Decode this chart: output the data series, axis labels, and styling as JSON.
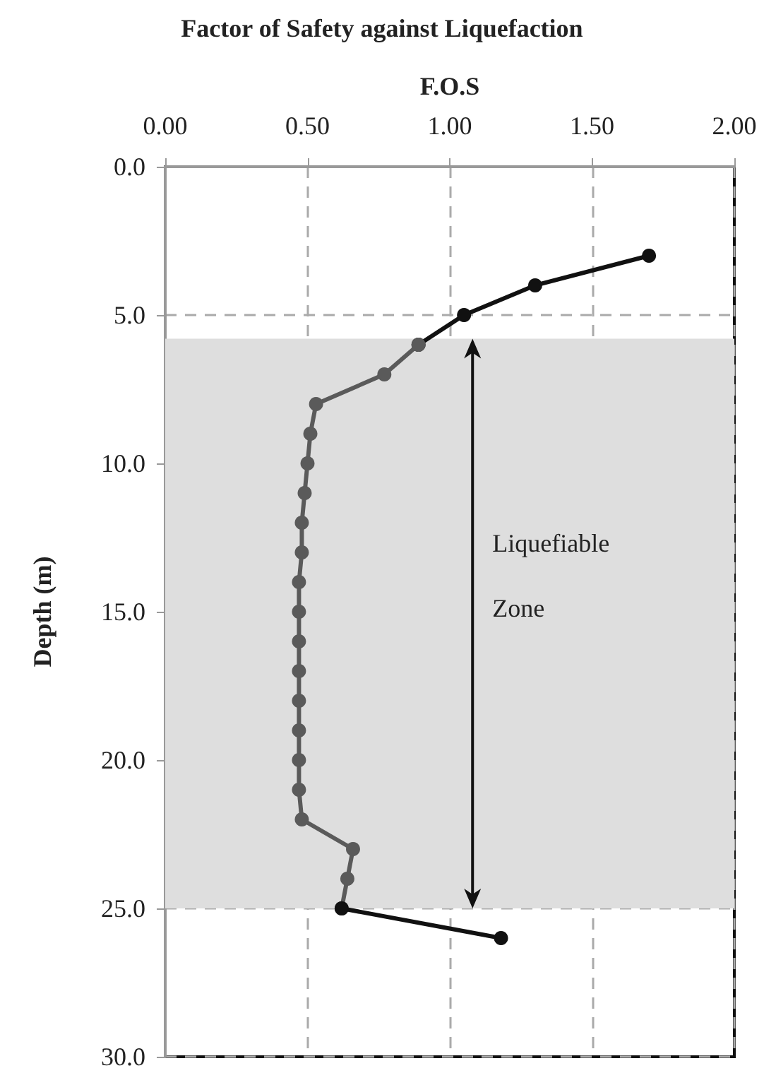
{
  "chart_data": {
    "type": "line",
    "title": "Factor of Safety against Liquefaction",
    "xlabel": "F.O.S",
    "ylabel": "Depth (m)",
    "annotations": [
      "Liquefiable Zone"
    ],
    "series": [
      {
        "color": "#111111",
        "x": [
          1.7,
          1.3,
          1.05,
          0.89
        ],
        "values": [
          3,
          4,
          5,
          6
        ]
      },
      {
        "color": "#5a5a5a",
        "x": [
          0.89,
          0.77,
          0.53,
          0.51,
          0.5,
          0.49,
          0.48,
          0.48,
          0.47,
          0.47,
          0.47,
          0.47,
          0.47,
          0.47,
          0.47,
          0.47,
          0.48,
          0.66,
          0.64,
          0.62
        ],
        "values": [
          6,
          7,
          8,
          9,
          10,
          11,
          12,
          13,
          14,
          15,
          16,
          17,
          18,
          19,
          20,
          21,
          22,
          23,
          24,
          25
        ]
      },
      {
        "color": "#111111",
        "x": [
          0.62,
          1.18
        ],
        "values": [
          25,
          26
        ]
      }
    ],
    "xlim": [
      0,
      2
    ],
    "xticks": [
      {
        "value": 0,
        "label": "0.00"
      },
      {
        "value": 0.5,
        "label": "0.50"
      },
      {
        "value": 1,
        "label": "1.00"
      },
      {
        "value": 1.5,
        "label": "1.50"
      },
      {
        "value": 2,
        "label": "2.00"
      }
    ],
    "ylim": [
      30,
      0
    ],
    "yticks": [
      {
        "value": 0,
        "label": "0.0"
      },
      {
        "value": 5,
        "label": "5.0"
      },
      {
        "value": 10,
        "label": "10.0"
      },
      {
        "value": 15,
        "label": "15.0"
      },
      {
        "value": 20,
        "label": "20.0"
      },
      {
        "value": 25,
        "label": "25.0"
      },
      {
        "value": 30,
        "label": "30.0"
      }
    ],
    "bands": [
      {
        "axis": "y",
        "from": 5.8,
        "to": 25,
        "color": "#dedede"
      }
    ],
    "grid": true,
    "marker": "circle",
    "line_style": "solid"
  }
}
